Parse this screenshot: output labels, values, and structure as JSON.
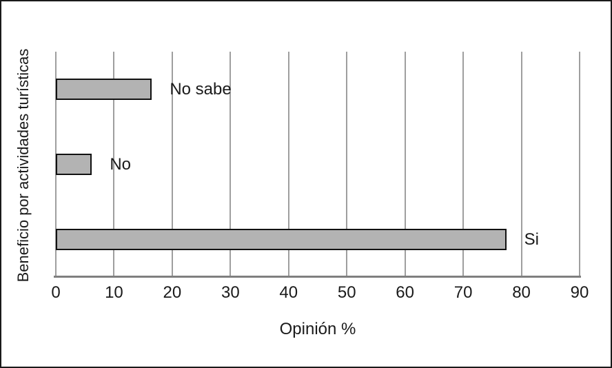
{
  "figure": {
    "background": "#ffffff",
    "border_color": "#1a1a1a",
    "text_color": "#1a1a1a"
  },
  "chart_data": {
    "type": "bar",
    "orientation": "horizontal",
    "xlabel": "Opinión %",
    "ylabel": "Beneficio por actividades turísticas",
    "categories": [
      "No sabe",
      "No",
      "Si"
    ],
    "values": [
      16.5,
      6.2,
      77.4
    ],
    "xlim": [
      0,
      90
    ],
    "xticks": [
      0,
      10,
      20,
      30,
      40,
      50,
      60,
      70,
      80,
      90
    ],
    "grid": true,
    "legend": false,
    "bar_fill": "#b3b3b3",
    "bar_border": "#111111",
    "gridline_color": "#9e9e9e",
    "axis_color": "#7f7f7f"
  }
}
